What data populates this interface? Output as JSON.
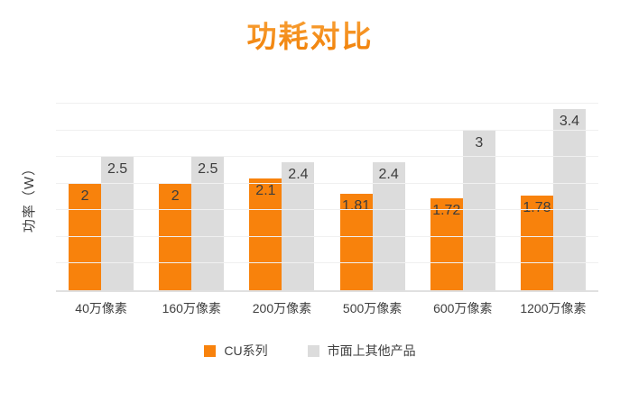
{
  "chart_data": {
    "type": "bar",
    "title": "功耗对比",
    "xlabel": "",
    "ylabel": "功率（W）",
    "categories": [
      "40万像素",
      "160万像素",
      "200万像素",
      "500万像素",
      "600万像素",
      "1200万像素"
    ],
    "series": [
      {
        "name": "CU系列",
        "color": "#F8820C",
        "values": [
          2,
          2,
          2.1,
          1.81,
          1.72,
          1.78
        ]
      },
      {
        "name": "市面上其他产品",
        "color": "#DCDCDC",
        "values": [
          2.5,
          2.5,
          2.4,
          2.4,
          3,
          3.4
        ]
      }
    ],
    "ylim": [
      0,
      3.5
    ],
    "grid_step": 0.5,
    "grid": true,
    "legend_position": "bottom",
    "colors": {
      "title": "#F7941D",
      "value_label": "#3D3D3D",
      "axis_text": "#404040",
      "grid_line": "#F0F0F0",
      "axis_line": "#E0E0E0",
      "background": "#FFFFFF"
    }
  }
}
